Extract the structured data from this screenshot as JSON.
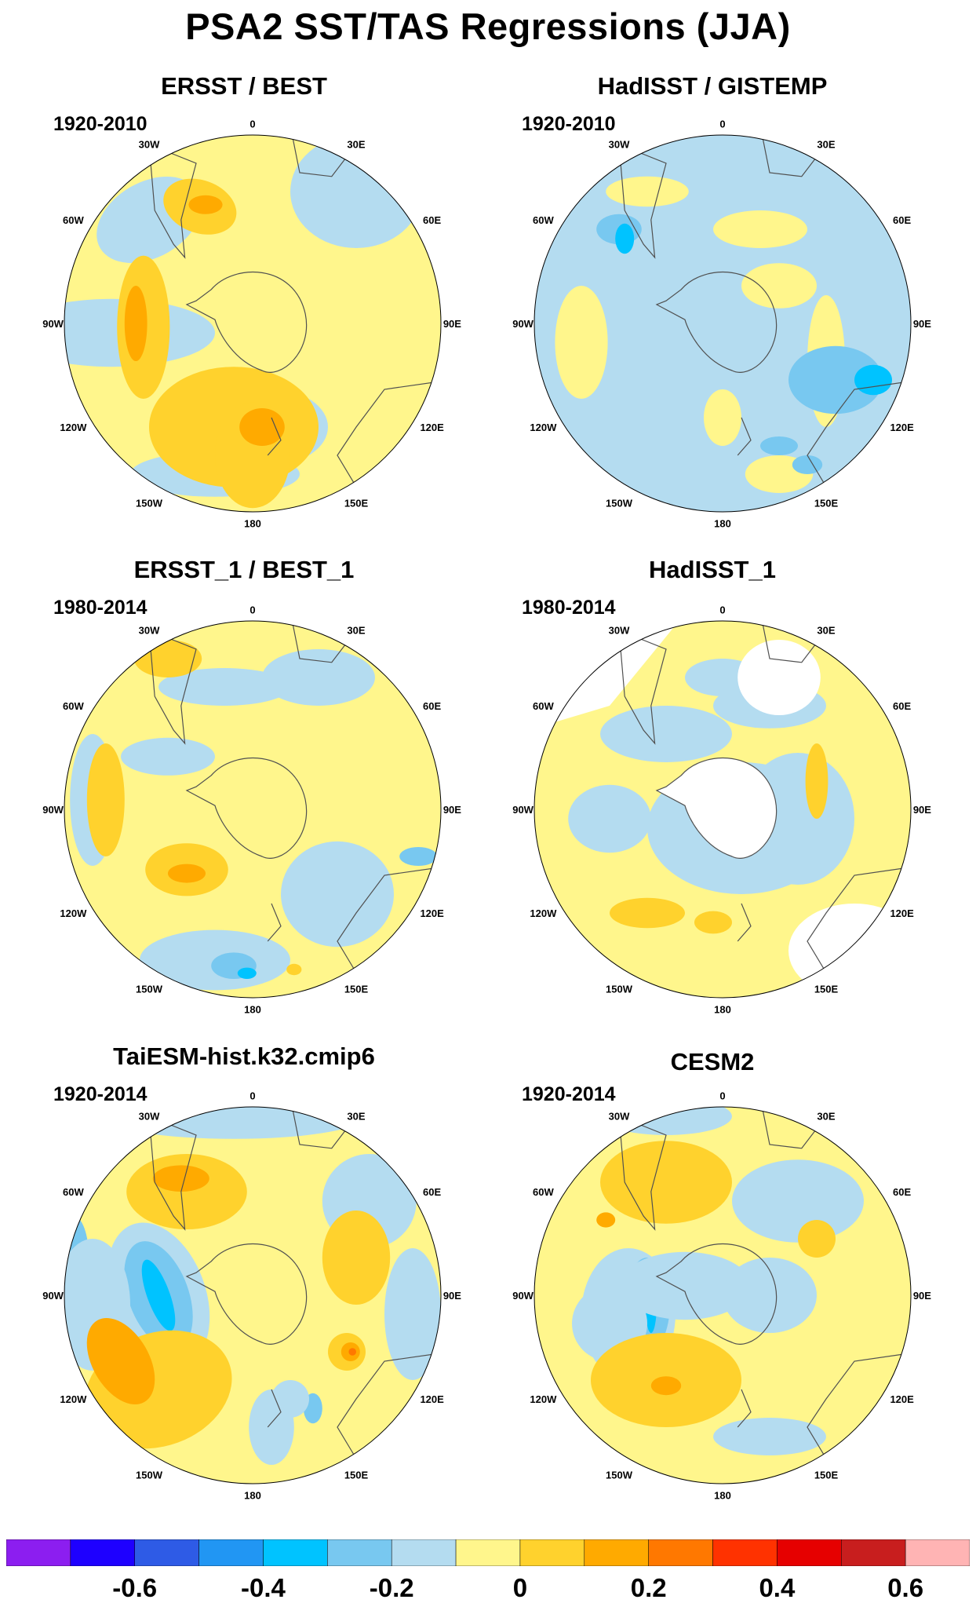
{
  "title": "PSA2 SST/TAS Regressions (JJA)",
  "panels": [
    {
      "name": "ERSST / BEST",
      "period": "1920-2010",
      "field": "ersst-best"
    },
    {
      "name": "HadISST / GISTEMP",
      "period": "1920-2010",
      "field": "hadisst-gistemp"
    },
    {
      "name": "ERSST_1 / BEST_1",
      "period": "1980-2014",
      "field": "ersst1-best1"
    },
    {
      "name": "HadISST_1",
      "period": "1980-2014",
      "field": "hadisst1"
    },
    {
      "name": "TaiESM-hist.k32.cmip6",
      "period": "1920-2014",
      "field": "taiesm"
    },
    {
      "name": "CESM2",
      "period": "1920-2014",
      "field": "cesm2"
    }
  ],
  "longitude_labels": [
    "0",
    "30E",
    "60E",
    "90E",
    "120E",
    "150E",
    "180",
    "150W",
    "120W",
    "90W",
    "60W",
    "30W"
  ],
  "colorbar": {
    "colors": [
      "#8c1ef0",
      "#1e00ff",
      "#2e5be6",
      "#2196f3",
      "#00c3ff",
      "#78c8f0",
      "#b4dcf0",
      "#fff68c",
      "#ffd22d",
      "#ffaa00",
      "#ff7800",
      "#ff3200",
      "#e60000",
      "#c81e1e",
      "#ffb4b4"
    ],
    "ticks": [
      "-0.6",
      "-0.4",
      "-0.2",
      "0",
      "0.2",
      "0.4",
      "0.6"
    ]
  },
  "colors": {
    "land": "#ffffff",
    "missing": "#ffffff",
    "coast": "#505050"
  }
}
